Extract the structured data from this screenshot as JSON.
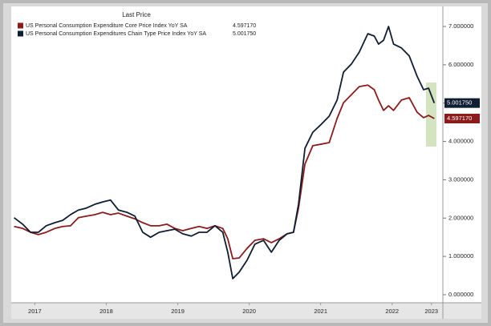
{
  "chart_data": {
    "type": "line",
    "legend_title": "Last Price",
    "x": [
      2017.21,
      2017.33,
      2017.44,
      2017.55,
      2017.66,
      2017.78,
      2017.89,
      2018.0,
      2018.11,
      2018.22,
      2018.34,
      2018.45,
      2018.56,
      2018.67,
      2018.79,
      2018.9,
      2019.01,
      2019.12,
      2019.24,
      2019.35,
      2019.46,
      2019.57,
      2019.69,
      2019.8,
      2019.91,
      2020.02,
      2020.13,
      2020.2,
      2020.27,
      2020.36,
      2020.47,
      2020.58,
      2020.7,
      2020.81,
      2020.92,
      2021.03,
      2021.12,
      2021.19,
      2021.28,
      2021.39,
      2021.51,
      2021.62,
      2021.73,
      2021.82,
      2021.93,
      2022.04,
      2022.16,
      2022.25,
      2022.31,
      2022.38,
      2022.45,
      2022.52,
      2022.63,
      2022.74,
      2022.85,
      2022.94,
      2023.01,
      2023.09
    ],
    "xlim": [
      2017.17,
      2023.21
    ],
    "xticks": [
      {
        "value": 2017.5,
        "label": "2017"
      },
      {
        "value": 2018.5,
        "label": "2018"
      },
      {
        "value": 2019.5,
        "label": "2019"
      },
      {
        "value": 2020.5,
        "label": "2020"
      },
      {
        "value": 2021.5,
        "label": "2021"
      },
      {
        "value": 2022.5,
        "label": "2022"
      },
      {
        "value": 2023.05,
        "label": "2023"
      }
    ],
    "ylim": [
      -0.21,
      7.44
    ],
    "yticks": [
      {
        "value": 0,
        "label": "0.000000"
      },
      {
        "value": 1,
        "label": "1.000000"
      },
      {
        "value": 2,
        "label": "2.000000"
      },
      {
        "value": 3,
        "label": "3.000000"
      },
      {
        "value": 4,
        "label": "4.000000"
      },
      {
        "value": 5,
        "label": "5.000000"
      },
      {
        "value": 6,
        "label": "6.000000"
      },
      {
        "value": 7,
        "label": "7.000000"
      }
    ],
    "grid": false,
    "series": [
      {
        "name": "US Personal Consumption Expenditure Core Price Index YoY SA",
        "color": "#8b1c1c",
        "last_price": "4.597170",
        "values": [
          1.78,
          1.73,
          1.63,
          1.57,
          1.63,
          1.73,
          1.78,
          1.8,
          2.01,
          2.05,
          2.09,
          2.15,
          2.09,
          2.13,
          2.05,
          1.98,
          1.88,
          1.8,
          1.8,
          1.84,
          1.73,
          1.67,
          1.73,
          1.78,
          1.73,
          1.8,
          1.73,
          1.46,
          0.94,
          0.96,
          1.21,
          1.42,
          1.46,
          1.36,
          1.46,
          1.59,
          1.63,
          2.26,
          3.41,
          3.89,
          3.93,
          3.97,
          4.6,
          5.01,
          5.22,
          5.43,
          5.47,
          5.35,
          5.08,
          4.81,
          4.93,
          4.81,
          5.08,
          5.14,
          4.76,
          4.62,
          4.68,
          4.59717
        ]
      },
      {
        "name": "US Personal Consumption Expenditures Chain Type Price Index YoY SA",
        "color": "#0f1e33",
        "last_price": "5.001750",
        "values": [
          2.01,
          1.84,
          1.63,
          1.63,
          1.8,
          1.88,
          1.94,
          2.09,
          2.21,
          2.26,
          2.36,
          2.42,
          2.47,
          2.21,
          2.15,
          2.05,
          1.63,
          1.5,
          1.63,
          1.67,
          1.71,
          1.59,
          1.53,
          1.63,
          1.63,
          1.8,
          1.63,
          1.11,
          0.42,
          0.59,
          0.9,
          1.32,
          1.42,
          1.11,
          1.42,
          1.59,
          1.63,
          2.36,
          3.82,
          4.24,
          4.45,
          4.66,
          5.08,
          5.81,
          6.02,
          6.33,
          6.81,
          6.75,
          6.54,
          6.64,
          7.0,
          6.54,
          6.44,
          6.23,
          5.7,
          5.35,
          5.39,
          5.00175
        ]
      }
    ]
  }
}
